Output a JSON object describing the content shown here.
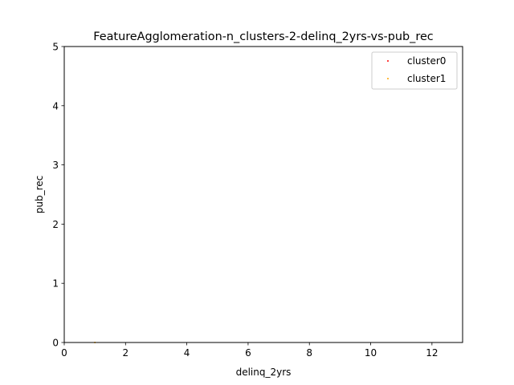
{
  "chart_data": {
    "type": "scatter",
    "title": "FeatureAgglomeration-n_clusters-2-delinq_2yrs-vs-pub_rec",
    "xlabel": "delinq_2yrs",
    "ylabel": "pub_rec",
    "xlim": [
      0,
      13
    ],
    "ylim": [
      0,
      5
    ],
    "xticks": [
      0,
      2,
      4,
      6,
      8,
      10,
      12
    ],
    "yticks": [
      0,
      1,
      2,
      3,
      4,
      5
    ],
    "grid": false,
    "legend_position": "top-right",
    "series": [
      {
        "name": "cluster0",
        "color": "#ff0000",
        "points": []
      },
      {
        "name": "cluster1",
        "color": "#ffa500",
        "points": [
          [
            1,
            0
          ]
        ]
      }
    ]
  }
}
